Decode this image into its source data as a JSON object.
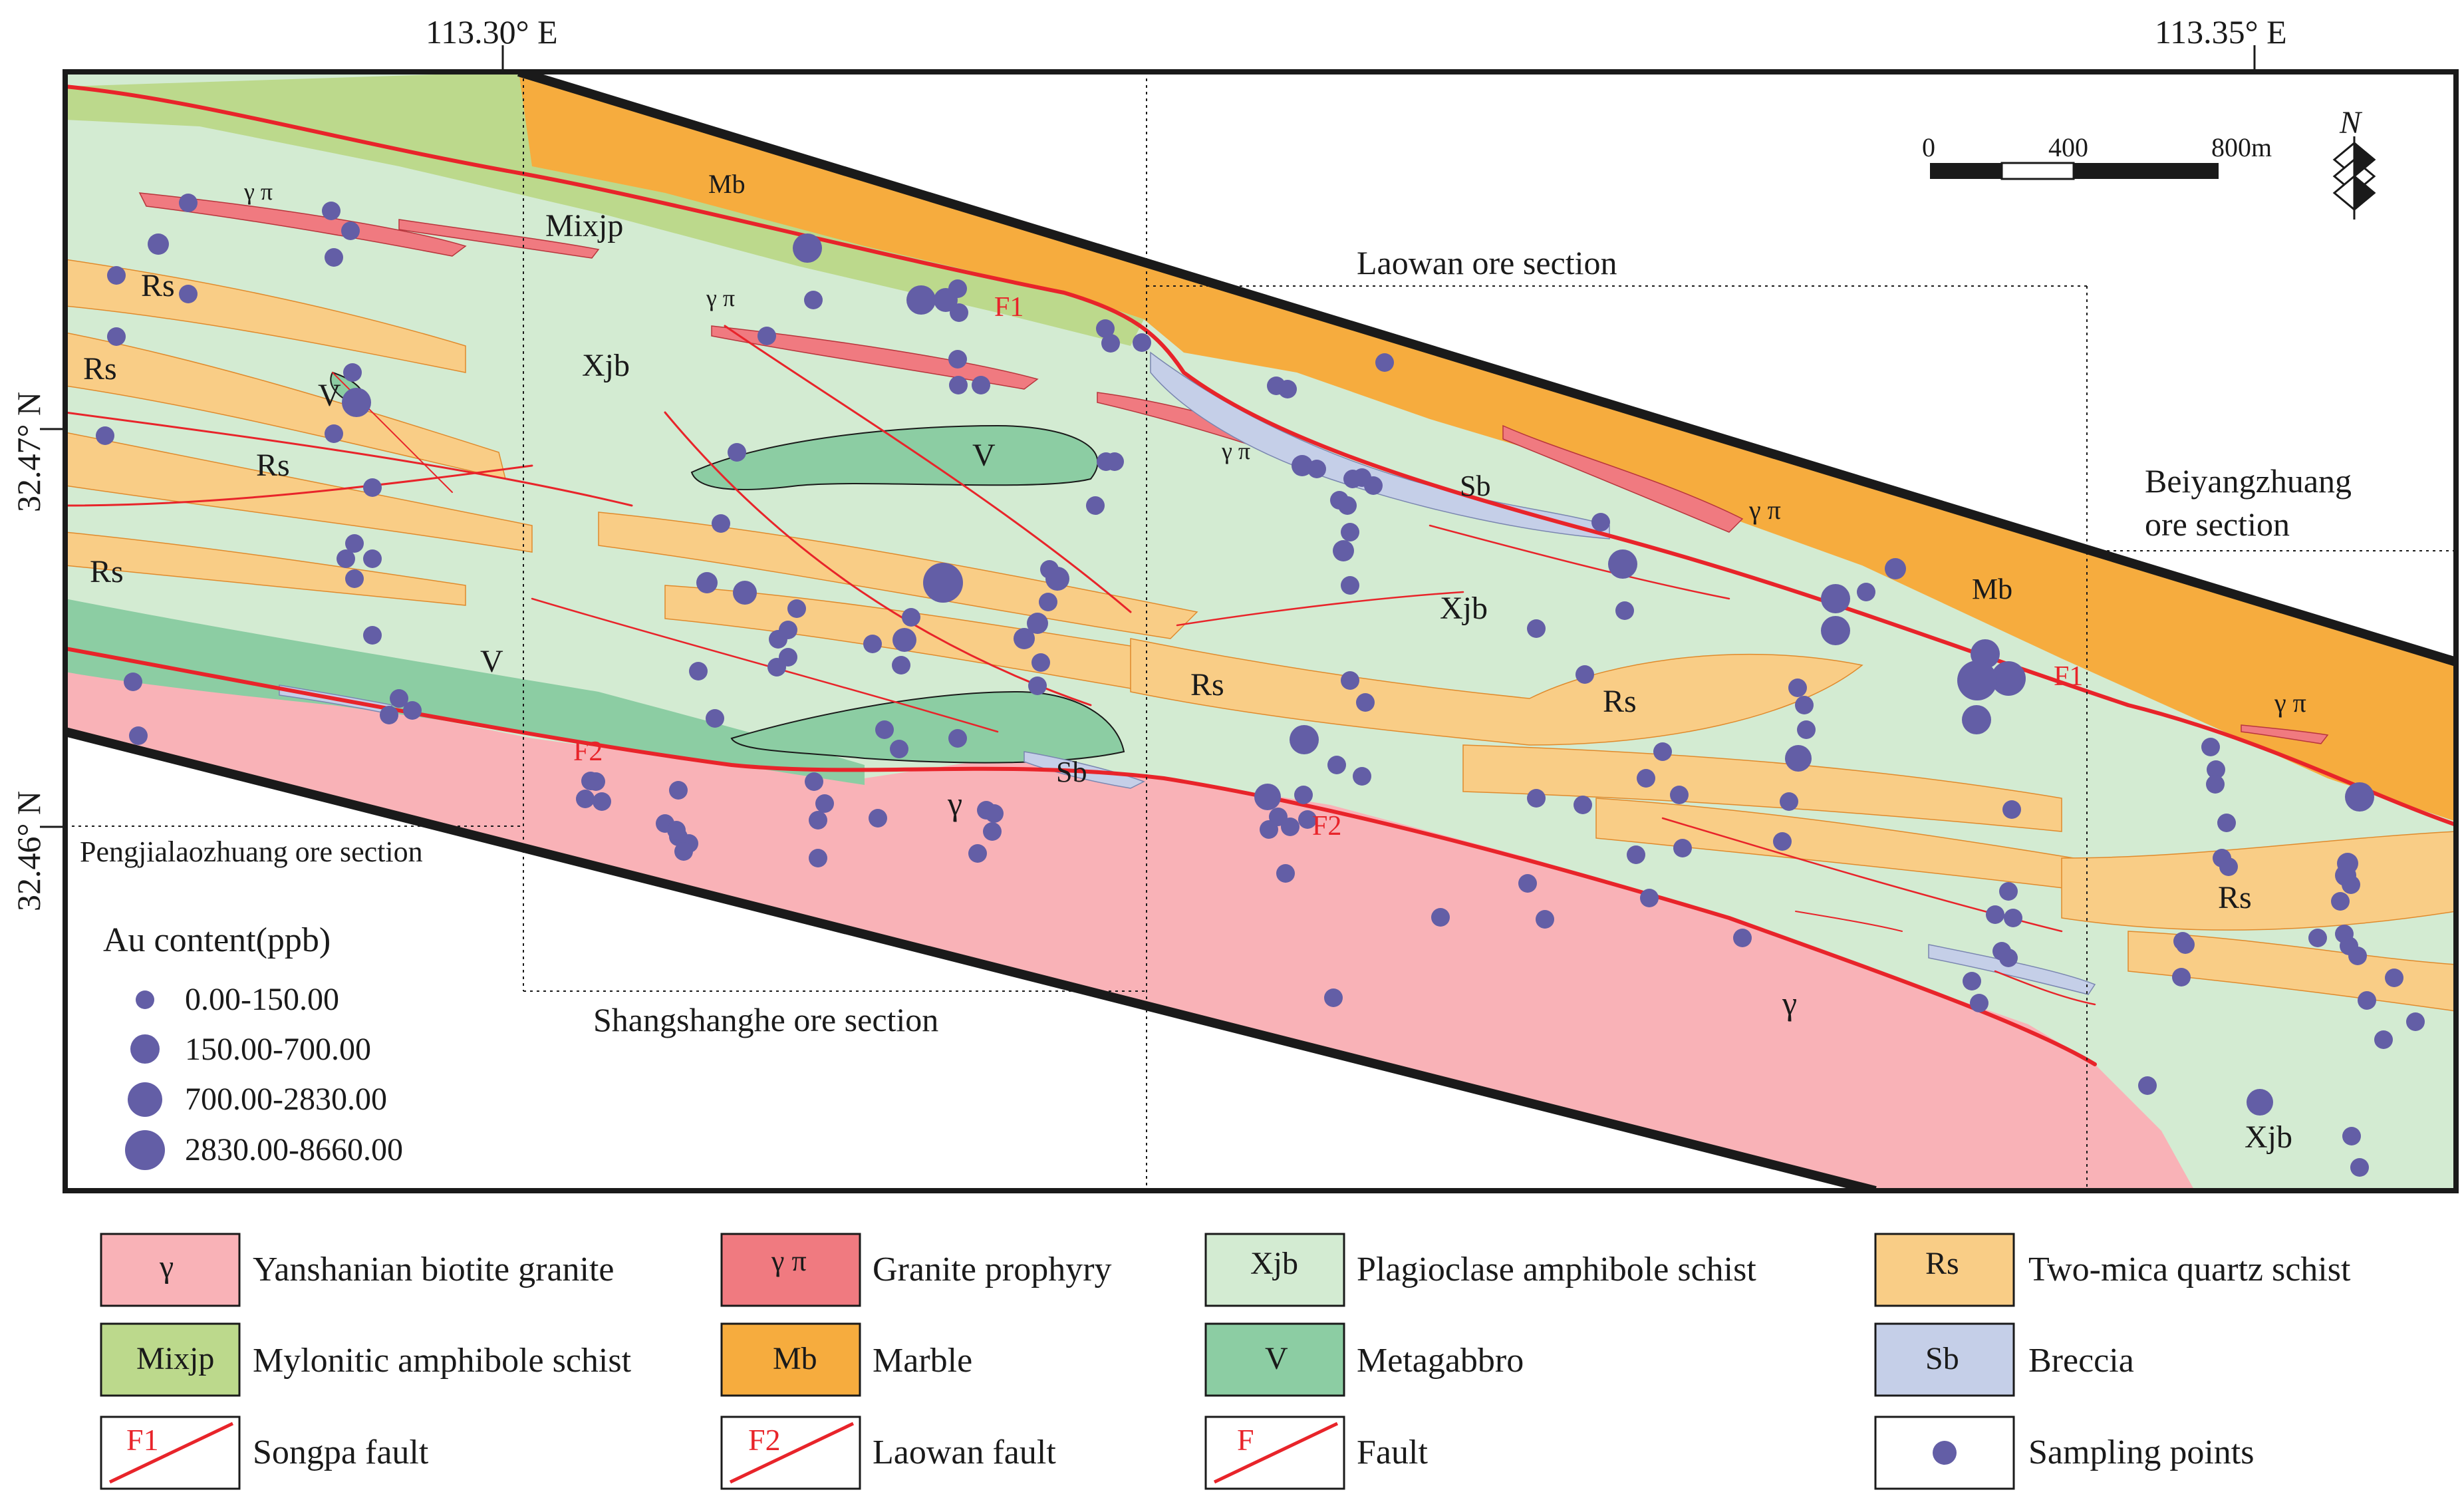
{
  "coordinates": {
    "lon_left": "113.30° E",
    "lon_right": "113.35° E",
    "lat_upper": "32.47° N",
    "lat_lower": "32.46° N"
  },
  "scale_bar": {
    "ticks": [
      "0",
      "400",
      "800m"
    ]
  },
  "north_arrow": {
    "label": "N"
  },
  "ore_sections": {
    "laowan": "Laowan ore section",
    "beiyangzhuang_1": "Beiyangzhuang",
    "beiyangzhuang_2": "ore section",
    "pengjialaozhuang": "Pengjialaozhuang ore section",
    "shangshanghe": "Shangshanghe ore section"
  },
  "map_labels": {
    "mb": "Mb",
    "mixjp": "Mixjp",
    "xjb": "Xjb",
    "rs": "Rs",
    "v": "V",
    "sb": "Sb",
    "gamma": "γ",
    "gamma_pi": "γ π",
    "f1": "F1",
    "f2": "F2"
  },
  "au_legend": {
    "title": "Au content(ppb)",
    "classes": [
      "0.00-150.00",
      "150.00-700.00",
      "700.00-2830.00",
      "2830.00-8660.00"
    ]
  },
  "legend": [
    {
      "code": "γ",
      "label": "Yanshanian biotite granite",
      "color": "#f9b2b7"
    },
    {
      "code": "γ π",
      "label": "Granite prophyry",
      "color": "#f07a80"
    },
    {
      "code": "Xjb",
      "label": "Plagioclase amphibole schist",
      "color": "#d3ebd2"
    },
    {
      "code": "Rs",
      "label": "Two-mica quartz schist",
      "color": "#f9cd86"
    },
    {
      "code": "Mixjp",
      "label": "Mylonitic amphibole schist",
      "color": "#bcd98c"
    },
    {
      "code": "Mb",
      "label": "Marble",
      "color": "#f6ac3e"
    },
    {
      "code": "V",
      "label": "Metagabbro",
      "color": "#8ccda3"
    },
    {
      "code": "Sb",
      "label": "Breccia",
      "color": "#c5cfe8"
    },
    {
      "code": "F1",
      "label": "Songpa fault"
    },
    {
      "code": "F2",
      "label": "Laowan fault"
    },
    {
      "code": "F",
      "label": "Fault"
    },
    {
      "code": "",
      "label": "Sampling points"
    }
  ],
  "colors": {
    "granite": "#f9b2b7",
    "porphyry": "#f07a80",
    "schist": "#d3ebd2",
    "quartz_schist": "#f9cd86",
    "mylonite": "#bcd98c",
    "marble": "#f6ac3e",
    "metagabbro": "#8ccda3",
    "breccia": "#c5cfe8",
    "fault": "#e8242a",
    "sample": "#635ea6"
  }
}
